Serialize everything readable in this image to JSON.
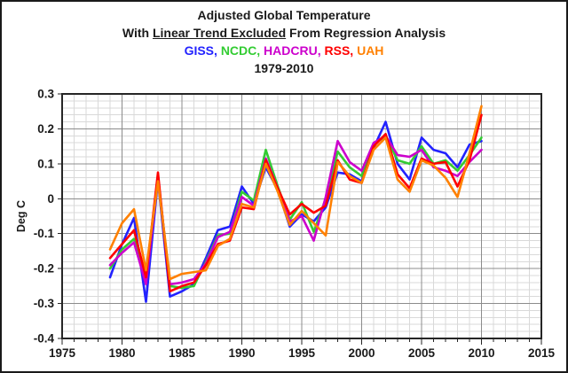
{
  "header": {
    "line1": "Adjusted Global Temperature",
    "line2": {
      "prefix": "With ",
      "underlined": "Linear Trend Excluded",
      "suffix": " From Regression Analysis"
    },
    "series_separator": ", ",
    "line4": "1979-2010"
  },
  "chart_data": {
    "type": "line",
    "title": "Adjusted Global Temperature With Linear Trend Excluded From Regression Analysis, 1979-2010",
    "xlabel": "",
    "ylabel": "Deg C",
    "xlim": [
      1975,
      2015
    ],
    "ylim": [
      -0.4,
      0.3
    ],
    "grid": "major+minor",
    "x_minor_step": 1,
    "y_minor_step": 0.02,
    "legend_position": "title",
    "x_tick_values": [
      1975,
      1980,
      1985,
      1990,
      1995,
      2000,
      2005,
      2010,
      2015
    ],
    "x_tick_labels": [
      "1975",
      "1980",
      "1985",
      "1990",
      "1995",
      "2000",
      "2005",
      "2010",
      "2015"
    ],
    "y_tick_values": [
      0.3,
      0.2,
      0.1,
      0,
      -0.1,
      -0.2,
      -0.3,
      -0.4
    ],
    "y_tick_labels": [
      "0.3",
      "0.2",
      "0.1",
      "0",
      "-0.1",
      "-0.2",
      "-0.3",
      "-0.4"
    ],
    "x": [
      1979,
      1980,
      1981,
      1982,
      1983,
      1984,
      1985,
      1986,
      1987,
      1988,
      1989,
      1990,
      1991,
      1992,
      1993,
      1994,
      1995,
      1996,
      1997,
      1998,
      1999,
      2000,
      2001,
      2002,
      2003,
      2004,
      2005,
      2006,
      2007,
      2008,
      2009,
      2010
    ],
    "series": [
      {
        "name": "GISS",
        "color": "#2222FF",
        "values": [
          -0.225,
          -0.13,
          -0.055,
          -0.295,
          0.055,
          -0.28,
          -0.265,
          -0.245,
          -0.17,
          -0.09,
          -0.08,
          0.035,
          -0.015,
          0.09,
          0.025,
          -0.08,
          -0.045,
          -0.065,
          -0.025,
          0.075,
          0.07,
          0.05,
          0.145,
          0.22,
          0.1,
          0.055,
          0.175,
          0.14,
          0.13,
          0.09,
          0.155,
          0.165
        ]
      },
      {
        "name": "NCDC",
        "color": "#33CC33",
        "values": [
          -0.2,
          -0.145,
          -0.115,
          -0.24,
          0.065,
          -0.25,
          -0.255,
          -0.25,
          -0.18,
          -0.105,
          -0.1,
          0.02,
          -0.005,
          0.14,
          0.035,
          -0.06,
          -0.01,
          -0.095,
          0.0,
          0.135,
          0.09,
          0.065,
          0.155,
          0.18,
          0.11,
          0.1,
          0.15,
          0.1,
          0.11,
          0.08,
          0.125,
          0.175
        ]
      },
      {
        "name": "HADCRU",
        "color": "#CC00CC",
        "values": [
          -0.19,
          -0.155,
          -0.125,
          -0.245,
          0.06,
          -0.245,
          -0.24,
          -0.23,
          -0.185,
          -0.11,
          -0.095,
          0.005,
          -0.02,
          0.115,
          0.03,
          -0.065,
          -0.05,
          -0.12,
          0.005,
          0.165,
          0.105,
          0.08,
          0.16,
          0.18,
          0.125,
          0.12,
          0.14,
          0.09,
          0.08,
          0.065,
          0.105,
          0.14
        ]
      },
      {
        "name": "RSS",
        "color": "#FF0000",
        "values": [
          -0.17,
          -0.13,
          -0.09,
          -0.225,
          0.075,
          -0.265,
          -0.25,
          -0.24,
          -0.19,
          -0.13,
          -0.12,
          -0.025,
          -0.03,
          0.11,
          0.03,
          -0.045,
          -0.015,
          -0.04,
          -0.02,
          0.11,
          0.055,
          0.045,
          0.15,
          0.185,
          0.07,
          0.03,
          0.115,
          0.1,
          0.105,
          0.035,
          0.11,
          0.24
        ]
      },
      {
        "name": "UAH",
        "color": "#FF8000",
        "values": [
          -0.145,
          -0.07,
          -0.03,
          -0.205,
          0.05,
          -0.23,
          -0.215,
          -0.21,
          -0.205,
          -0.135,
          -0.115,
          -0.015,
          -0.025,
          0.1,
          0.02,
          -0.075,
          -0.035,
          -0.07,
          -0.105,
          0.105,
          0.065,
          0.045,
          0.14,
          0.175,
          0.055,
          0.02,
          0.11,
          0.095,
          0.06,
          0.005,
          0.13,
          0.265
        ]
      }
    ],
    "style": {
      "grid_minor": "#D9D9D9",
      "grid_major": "#8C8C8C",
      "axis": "#262626",
      "text": "#1A1A1A"
    }
  }
}
